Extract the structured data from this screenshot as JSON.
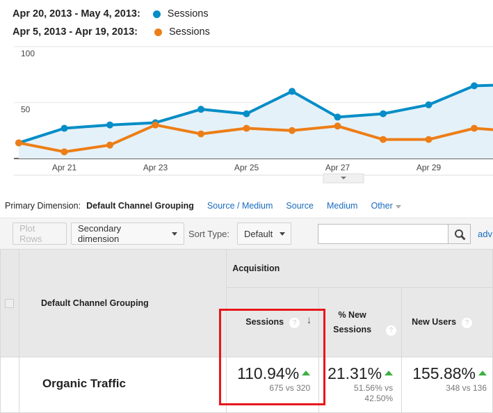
{
  "legend": [
    {
      "range": "Apr 20, 2013 - May 4, 2013:",
      "series": "Sessions",
      "color": "#058dc7"
    },
    {
      "range": "Apr 5, 2013 - Apr 19, 2013:",
      "series": "Sessions",
      "color": "#ed7e17"
    }
  ],
  "chart_data": {
    "type": "line",
    "x": [
      "Apr 20",
      "Apr 21",
      "Apr 22",
      "Apr 23",
      "Apr 24",
      "Apr 25",
      "Apr 26",
      "Apr 27",
      "Apr 28",
      "Apr 29",
      "Apr 30",
      "May 1"
    ],
    "xticks": [
      "Apr 21",
      "Apr 23",
      "Apr 25",
      "Apr 27",
      "Apr 29"
    ],
    "yticks": [
      "50",
      "100"
    ],
    "ylim": [
      0,
      100
    ],
    "grid": true,
    "series": [
      {
        "name": "Sessions",
        "range": "Apr 20, 2013 - May 4, 2013",
        "color": "#058dc7",
        "fill": true,
        "values": [
          14,
          27,
          30,
          32,
          44,
          40,
          60,
          37,
          40,
          48,
          65,
          66
        ]
      },
      {
        "name": "Sessions",
        "range": "Apr 5, 2013 - Apr 19, 2013",
        "color": "#ed7e17",
        "values": [
          14,
          6,
          12,
          30,
          22,
          27,
          25,
          29,
          17,
          17,
          27,
          24
        ]
      }
    ]
  },
  "dimension": {
    "label": "Primary Dimension:",
    "active": "Default Channel Grouping",
    "links": [
      "Source / Medium",
      "Source",
      "Medium",
      "Other"
    ]
  },
  "toolbar": {
    "plot_rows": "Plot Rows",
    "secondary": "Secondary dimension",
    "sort_label": "Sort Type:",
    "sort_value": "Default",
    "search_value": "",
    "advanced": "adv"
  },
  "table": {
    "dim_header": "Default Channel Grouping",
    "group_header": "Acquisition",
    "columns": [
      "Sessions",
      "% New Sessions",
      "New Users"
    ],
    "rows": [
      {
        "name": "Organic Traffic",
        "cells": [
          {
            "pct": "110.94%",
            "cmp": "675 vs 320"
          },
          {
            "pct": "21.31%",
            "cmp": "51.56% vs 42.50%"
          },
          {
            "pct": "155.88%",
            "cmp": "348 vs 136"
          }
        ]
      }
    ]
  },
  "highlight_color": "#e8161b"
}
